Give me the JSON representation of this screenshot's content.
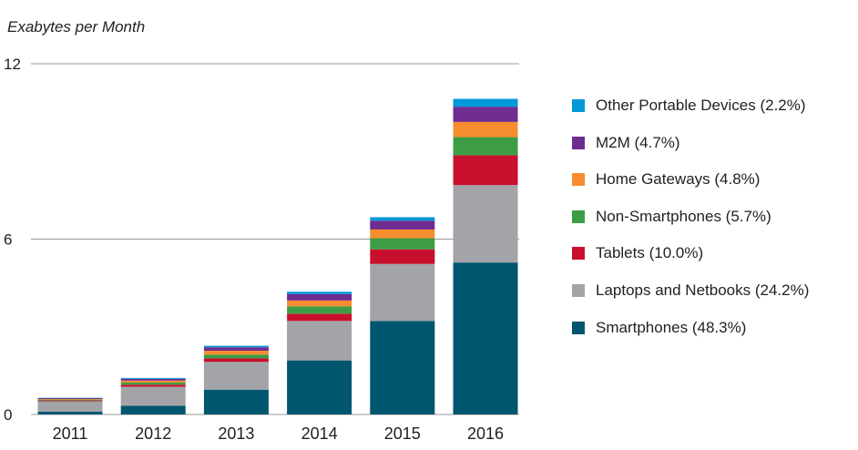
{
  "chart_data": {
    "type": "bar",
    "stacked": true,
    "ylabel": "Exabytes per Month",
    "ylim": [
      0,
      12
    ],
    "yticks": [
      0,
      6,
      12
    ],
    "categories": [
      "2011",
      "2012",
      "2013",
      "2014",
      "2015",
      "2016"
    ],
    "series": [
      {
        "name": "Smartphones (48.3%)",
        "color": "#00566e",
        "values": [
          0.1,
          0.3,
          0.85,
          1.85,
          3.2,
          5.2
        ]
      },
      {
        "name": "Laptops and Netbooks (24.2%)",
        "color": "#a2a4a7",
        "values": [
          0.35,
          0.65,
          0.95,
          1.35,
          1.95,
          2.65
        ]
      },
      {
        "name": "Tablets (10.0%)",
        "color": "#c8102e",
        "values": [
          0.03,
          0.07,
          0.12,
          0.25,
          0.5,
          1.02
        ]
      },
      {
        "name": "Non-Smartphones (5.7%)",
        "color": "#3d9d45",
        "values": [
          0.03,
          0.07,
          0.13,
          0.25,
          0.38,
          0.62
        ]
      },
      {
        "name": "Home Gateways (4.8%)",
        "color": "#f68d2e",
        "values": [
          0.02,
          0.07,
          0.13,
          0.2,
          0.3,
          0.52
        ]
      },
      {
        "name": "M2M (4.7%)",
        "color": "#6f2c91",
        "values": [
          0.03,
          0.06,
          0.12,
          0.22,
          0.3,
          0.52
        ]
      },
      {
        "name": "Other Portable Devices (2.2%)",
        "color": "#0098d6",
        "values": [
          0.01,
          0.03,
          0.05,
          0.08,
          0.12,
          0.27
        ]
      }
    ],
    "grid": true,
    "legend_position": "right"
  }
}
